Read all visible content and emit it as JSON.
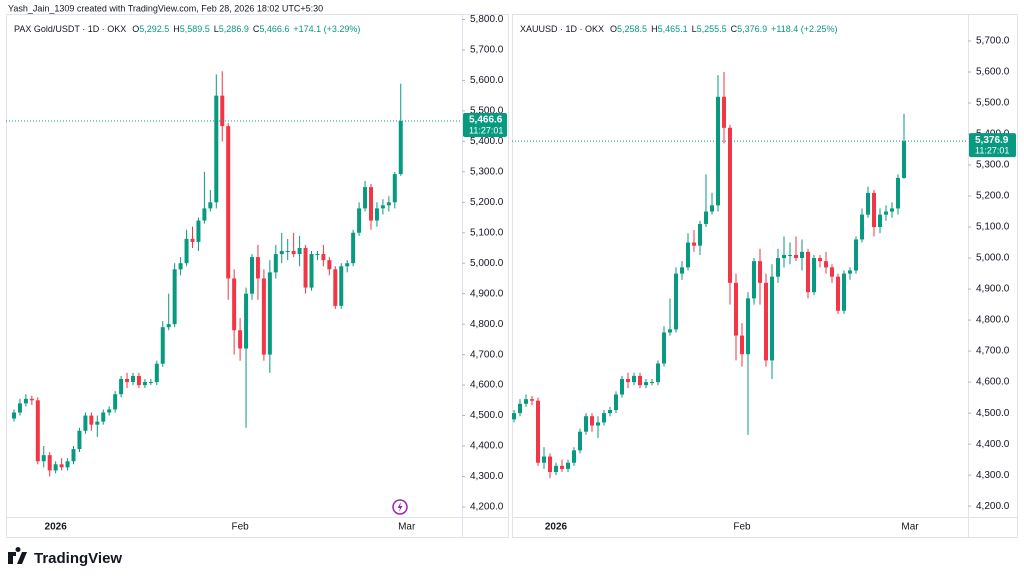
{
  "header": {
    "attribution": "Yash_Jain_1309 created with TradingView.com, Feb 28, 2026 18:02 UTC+5:30"
  },
  "footer": {
    "logo": "TradingView"
  },
  "chart_data": [
    {
      "type": "candlestick",
      "title": "PAX Gold/USDT · 1D · OKX",
      "ohlc_legend": [
        {
          "key": "O",
          "value": "5,292.5"
        },
        {
          "key": "H",
          "value": "5,589.5"
        },
        {
          "key": "L",
          "value": "5,286.9"
        },
        {
          "key": "C",
          "value": "5,466.6"
        }
      ],
      "change": "+174.1 (+3.29%)",
      "last_price": {
        "value": 5466.6,
        "label": "5,466.6"
      },
      "countdown": "11:27:01",
      "up_color": "#089981",
      "down_color": "#f23645",
      "grid": false,
      "ylim": [
        4167,
        5818
      ],
      "yticks": [
        {
          "value": 4200,
          "label": "4,200.0"
        },
        {
          "value": 4300,
          "label": "4,300.0"
        },
        {
          "value": 4400,
          "label": "4,400.0"
        },
        {
          "value": 4500,
          "label": "4,500.0"
        },
        {
          "value": 4600,
          "label": "4,600.0"
        },
        {
          "value": 4700,
          "label": "4,700.0"
        },
        {
          "value": 4800,
          "label": "4,800.0"
        },
        {
          "value": 4900,
          "label": "4,900.0"
        },
        {
          "value": 5000,
          "label": "5,000.0"
        },
        {
          "value": 5100,
          "label": "5,100.0"
        },
        {
          "value": 5200,
          "label": "5,200.0"
        },
        {
          "value": 5300,
          "label": "5,300.0"
        },
        {
          "value": 5400,
          "label": "5,400.0"
        },
        {
          "value": 5500,
          "label": "5,500.0"
        },
        {
          "value": 5600,
          "label": "5,600.0"
        },
        {
          "value": 5700,
          "label": "5,700.0"
        },
        {
          "value": 5800,
          "label": "5,800.0"
        }
      ],
      "categories": [
        null,
        null,
        null,
        null,
        null,
        null,
        null,
        "2026",
        null,
        null,
        null,
        null,
        null,
        null,
        null,
        null,
        null,
        null,
        null,
        null,
        null,
        null,
        null,
        null,
        null,
        null,
        null,
        null,
        null,
        null,
        null,
        null,
        null,
        null,
        null,
        null,
        null,
        null,
        "Feb",
        null,
        null,
        null,
        null,
        null,
        null,
        null,
        null,
        null,
        null,
        null,
        null,
        null,
        null,
        null,
        null,
        null,
        null,
        null,
        null,
        null,
        null,
        null,
        null,
        null,
        null,
        null,
        "Mar"
      ],
      "open": [
        4490,
        4510,
        4540,
        4555,
        4550,
        4350,
        4370,
        4320,
        4340,
        4330,
        4350,
        4390,
        4450,
        4500,
        4470,
        4480,
        4510,
        4520,
        4570,
        4620,
        4610,
        4630,
        4600,
        4610,
        4610,
        4670,
        4790,
        4800,
        4980,
        5000,
        5080,
        5070,
        5140,
        5180,
        5200,
        5550,
        5450,
        4950,
        4780,
        4720,
        4900,
        5020,
        4950,
        4700,
        4970,
        5030,
        5040,
        5040,
        5030,
        5050,
        4920,
        5030,
        5030,
        5010,
        4980,
        4860,
        4990,
        5000,
        5100,
        5180,
        5250,
        5140,
        5180,
        5190,
        5200,
        5292.5,
        null
      ],
      "high": [
        4520,
        4555,
        4570,
        4565,
        4560,
        4400,
        4380,
        4350,
        4360,
        4360,
        4400,
        4460,
        4510,
        4510,
        4500,
        4520,
        4530,
        4580,
        4630,
        4640,
        4640,
        4640,
        4620,
        4620,
        4680,
        4810,
        4900,
        5000,
        5020,
        5110,
        5120,
        5150,
        5300,
        5240,
        5620,
        5630,
        5460,
        4980,
        4820,
        4920,
        5030,
        5060,
        4980,
        5010,
        5060,
        5100,
        5080,
        5100,
        5090,
        5060,
        5040,
        5040,
        5060,
        5020,
        4990,
        5000,
        5010,
        5110,
        5200,
        5270,
        5260,
        5200,
        5210,
        5220,
        5300,
        5589.5,
        null
      ],
      "low": [
        4480,
        4500,
        4530,
        4535,
        4340,
        4330,
        4300,
        4310,
        4320,
        4320,
        4340,
        4380,
        4440,
        4450,
        4430,
        4470,
        4500,
        4510,
        4560,
        4590,
        4600,
        4590,
        4590,
        4600,
        4600,
        4660,
        4780,
        4790,
        4960,
        4990,
        5050,
        5040,
        5130,
        5170,
        5180,
        5400,
        4880,
        4700,
        4680,
        4460,
        4880,
        4880,
        4680,
        4640,
        4950,
        5000,
        5010,
        5020,
        4990,
        4900,
        4910,
        5010,
        4990,
        4960,
        4850,
        4850,
        4970,
        4990,
        5090,
        5170,
        5110,
        5120,
        5160,
        5170,
        5180,
        5286.9,
        null
      ],
      "close": [
        4510,
        4540,
        4555,
        4550,
        4350,
        4370,
        4320,
        4340,
        4330,
        4350,
        4390,
        4450,
        4500,
        4470,
        4480,
        4510,
        4520,
        4570,
        4620,
        4610,
        4630,
        4600,
        4610,
        4610,
        4670,
        4790,
        4800,
        4980,
        5000,
        5080,
        5070,
        5140,
        5180,
        5200,
        5550,
        5450,
        4950,
        4780,
        4720,
        4900,
        5020,
        4950,
        4700,
        4970,
        5030,
        5040,
        5040,
        5030,
        5050,
        4920,
        5030,
        5030,
        5010,
        4980,
        4860,
        4990,
        5000,
        5100,
        5180,
        5250,
        5140,
        5180,
        5190,
        5200,
        5292.5,
        5466.6,
        null
      ]
    },
    {
      "type": "candlestick",
      "title": "XAUUSD · 1D · OKX",
      "ohlc_legend": [
        {
          "key": "O",
          "value": "5,258.5"
        },
        {
          "key": "H",
          "value": "5,465.1"
        },
        {
          "key": "L",
          "value": "5,255.5"
        },
        {
          "key": "C",
          "value": "5,376.9"
        }
      ],
      "change": "+118.4 (+2.25%)",
      "last_price": {
        "value": 5376.9,
        "label": "5,376.9"
      },
      "countdown": "11:27:01",
      "up_color": "#089981",
      "down_color": "#f23645",
      "grid": false,
      "ylim": [
        4165,
        5787
      ],
      "yticks": [
        {
          "value": 4200,
          "label": "4,200.0"
        },
        {
          "value": 4300,
          "label": "4,300.0"
        },
        {
          "value": 4400,
          "label": "4,400.0"
        },
        {
          "value": 4500,
          "label": "4,500.0"
        },
        {
          "value": 4600,
          "label": "4,600.0"
        },
        {
          "value": 4700,
          "label": "4,700.0"
        },
        {
          "value": 4800,
          "label": "4,800.0"
        },
        {
          "value": 4900,
          "label": "4,900.0"
        },
        {
          "value": 5000,
          "label": "5,000.0"
        },
        {
          "value": 5100,
          "label": "5,100.0"
        },
        {
          "value": 5200,
          "label": "5,200.0"
        },
        {
          "value": 5300,
          "label": "5,300.0"
        },
        {
          "value": 5400,
          "label": "5,400.0"
        },
        {
          "value": 5500,
          "label": "5,500.0"
        },
        {
          "value": 5600,
          "label": "5,600.0"
        },
        {
          "value": 5700,
          "label": "5,700.0"
        }
      ],
      "categories": [
        null,
        null,
        null,
        null,
        null,
        null,
        null,
        "2026",
        null,
        null,
        null,
        null,
        null,
        null,
        null,
        null,
        null,
        null,
        null,
        null,
        null,
        null,
        null,
        null,
        null,
        null,
        null,
        null,
        null,
        null,
        null,
        null,
        null,
        null,
        null,
        null,
        null,
        null,
        "Feb",
        null,
        null,
        null,
        null,
        null,
        null,
        null,
        null,
        null,
        null,
        null,
        null,
        null,
        null,
        null,
        null,
        null,
        null,
        null,
        null,
        null,
        null,
        null,
        null,
        null,
        null,
        null,
        "Mar"
      ],
      "open": [
        4480,
        4500,
        4530,
        4545,
        4540,
        4340,
        4360,
        4310,
        4330,
        4320,
        4340,
        4380,
        4440,
        4490,
        4460,
        4470,
        4500,
        4510,
        4560,
        4610,
        4600,
        4620,
        4590,
        4600,
        4600,
        4660,
        4760,
        4770,
        4950,
        4970,
        5050,
        5040,
        5110,
        5150,
        5170,
        5520,
        5420,
        4920,
        4750,
        4690,
        4870,
        4990,
        4920,
        4670,
        4940,
        5000,
        5010,
        5010,
        5000,
        5020,
        4890,
        5000,
        4990,
        4970,
        4940,
        4830,
        4950,
        4960,
        5060,
        5140,
        5210,
        5100,
        5140,
        5150,
        5160,
        5258.5,
        null
      ],
      "high": [
        4510,
        4545,
        4560,
        4555,
        4550,
        4390,
        4370,
        4340,
        4350,
        4350,
        4390,
        4450,
        4500,
        4500,
        4490,
        4510,
        4520,
        4570,
        4620,
        4630,
        4630,
        4630,
        4610,
        4610,
        4670,
        4780,
        4870,
        4970,
        4990,
        5080,
        5090,
        5120,
        5270,
        5210,
        5590,
        5600,
        5430,
        4950,
        4790,
        4890,
        5000,
        5030,
        4950,
        4980,
        5030,
        5070,
        5050,
        5070,
        5060,
        5030,
        5010,
        5010,
        5020,
        4980,
        4950,
        4960,
        4970,
        5070,
        5160,
        5230,
        5220,
        5160,
        5170,
        5180,
        5270,
        5465.1,
        null
      ],
      "low": [
        4470,
        4490,
        4520,
        4525,
        4330,
        4320,
        4290,
        4300,
        4310,
        4310,
        4330,
        4370,
        4430,
        4440,
        4420,
        4460,
        4490,
        4500,
        4550,
        4580,
        4590,
        4580,
        4580,
        4590,
        4590,
        4650,
        4750,
        4760,
        4930,
        4960,
        5020,
        5010,
        5100,
        5140,
        5150,
        5370,
        4850,
        4670,
        4650,
        4430,
        4850,
        4850,
        4650,
        4610,
        4920,
        4970,
        4980,
        4990,
        4960,
        4870,
        4880,
        4970,
        4950,
        4920,
        4820,
        4820,
        4930,
        4950,
        5050,
        5130,
        5070,
        5080,
        5120,
        5130,
        5140,
        5255.5,
        null
      ],
      "close": [
        4500,
        4530,
        4545,
        4540,
        4340,
        4360,
        4310,
        4330,
        4320,
        4340,
        4380,
        4440,
        4490,
        4460,
        4470,
        4500,
        4510,
        4560,
        4610,
        4600,
        4620,
        4590,
        4600,
        4600,
        4660,
        4760,
        4770,
        4950,
        4970,
        5050,
        5040,
        5110,
        5150,
        5170,
        5520,
        5420,
        4920,
        4750,
        4690,
        4870,
        4990,
        4920,
        4670,
        4940,
        5000,
        5010,
        5010,
        5000,
        5020,
        4890,
        5000,
        4990,
        4970,
        4940,
        4830,
        4950,
        4960,
        5060,
        5140,
        5210,
        5100,
        5140,
        5150,
        5160,
        5258.5,
        5376.9,
        null
      ]
    }
  ]
}
